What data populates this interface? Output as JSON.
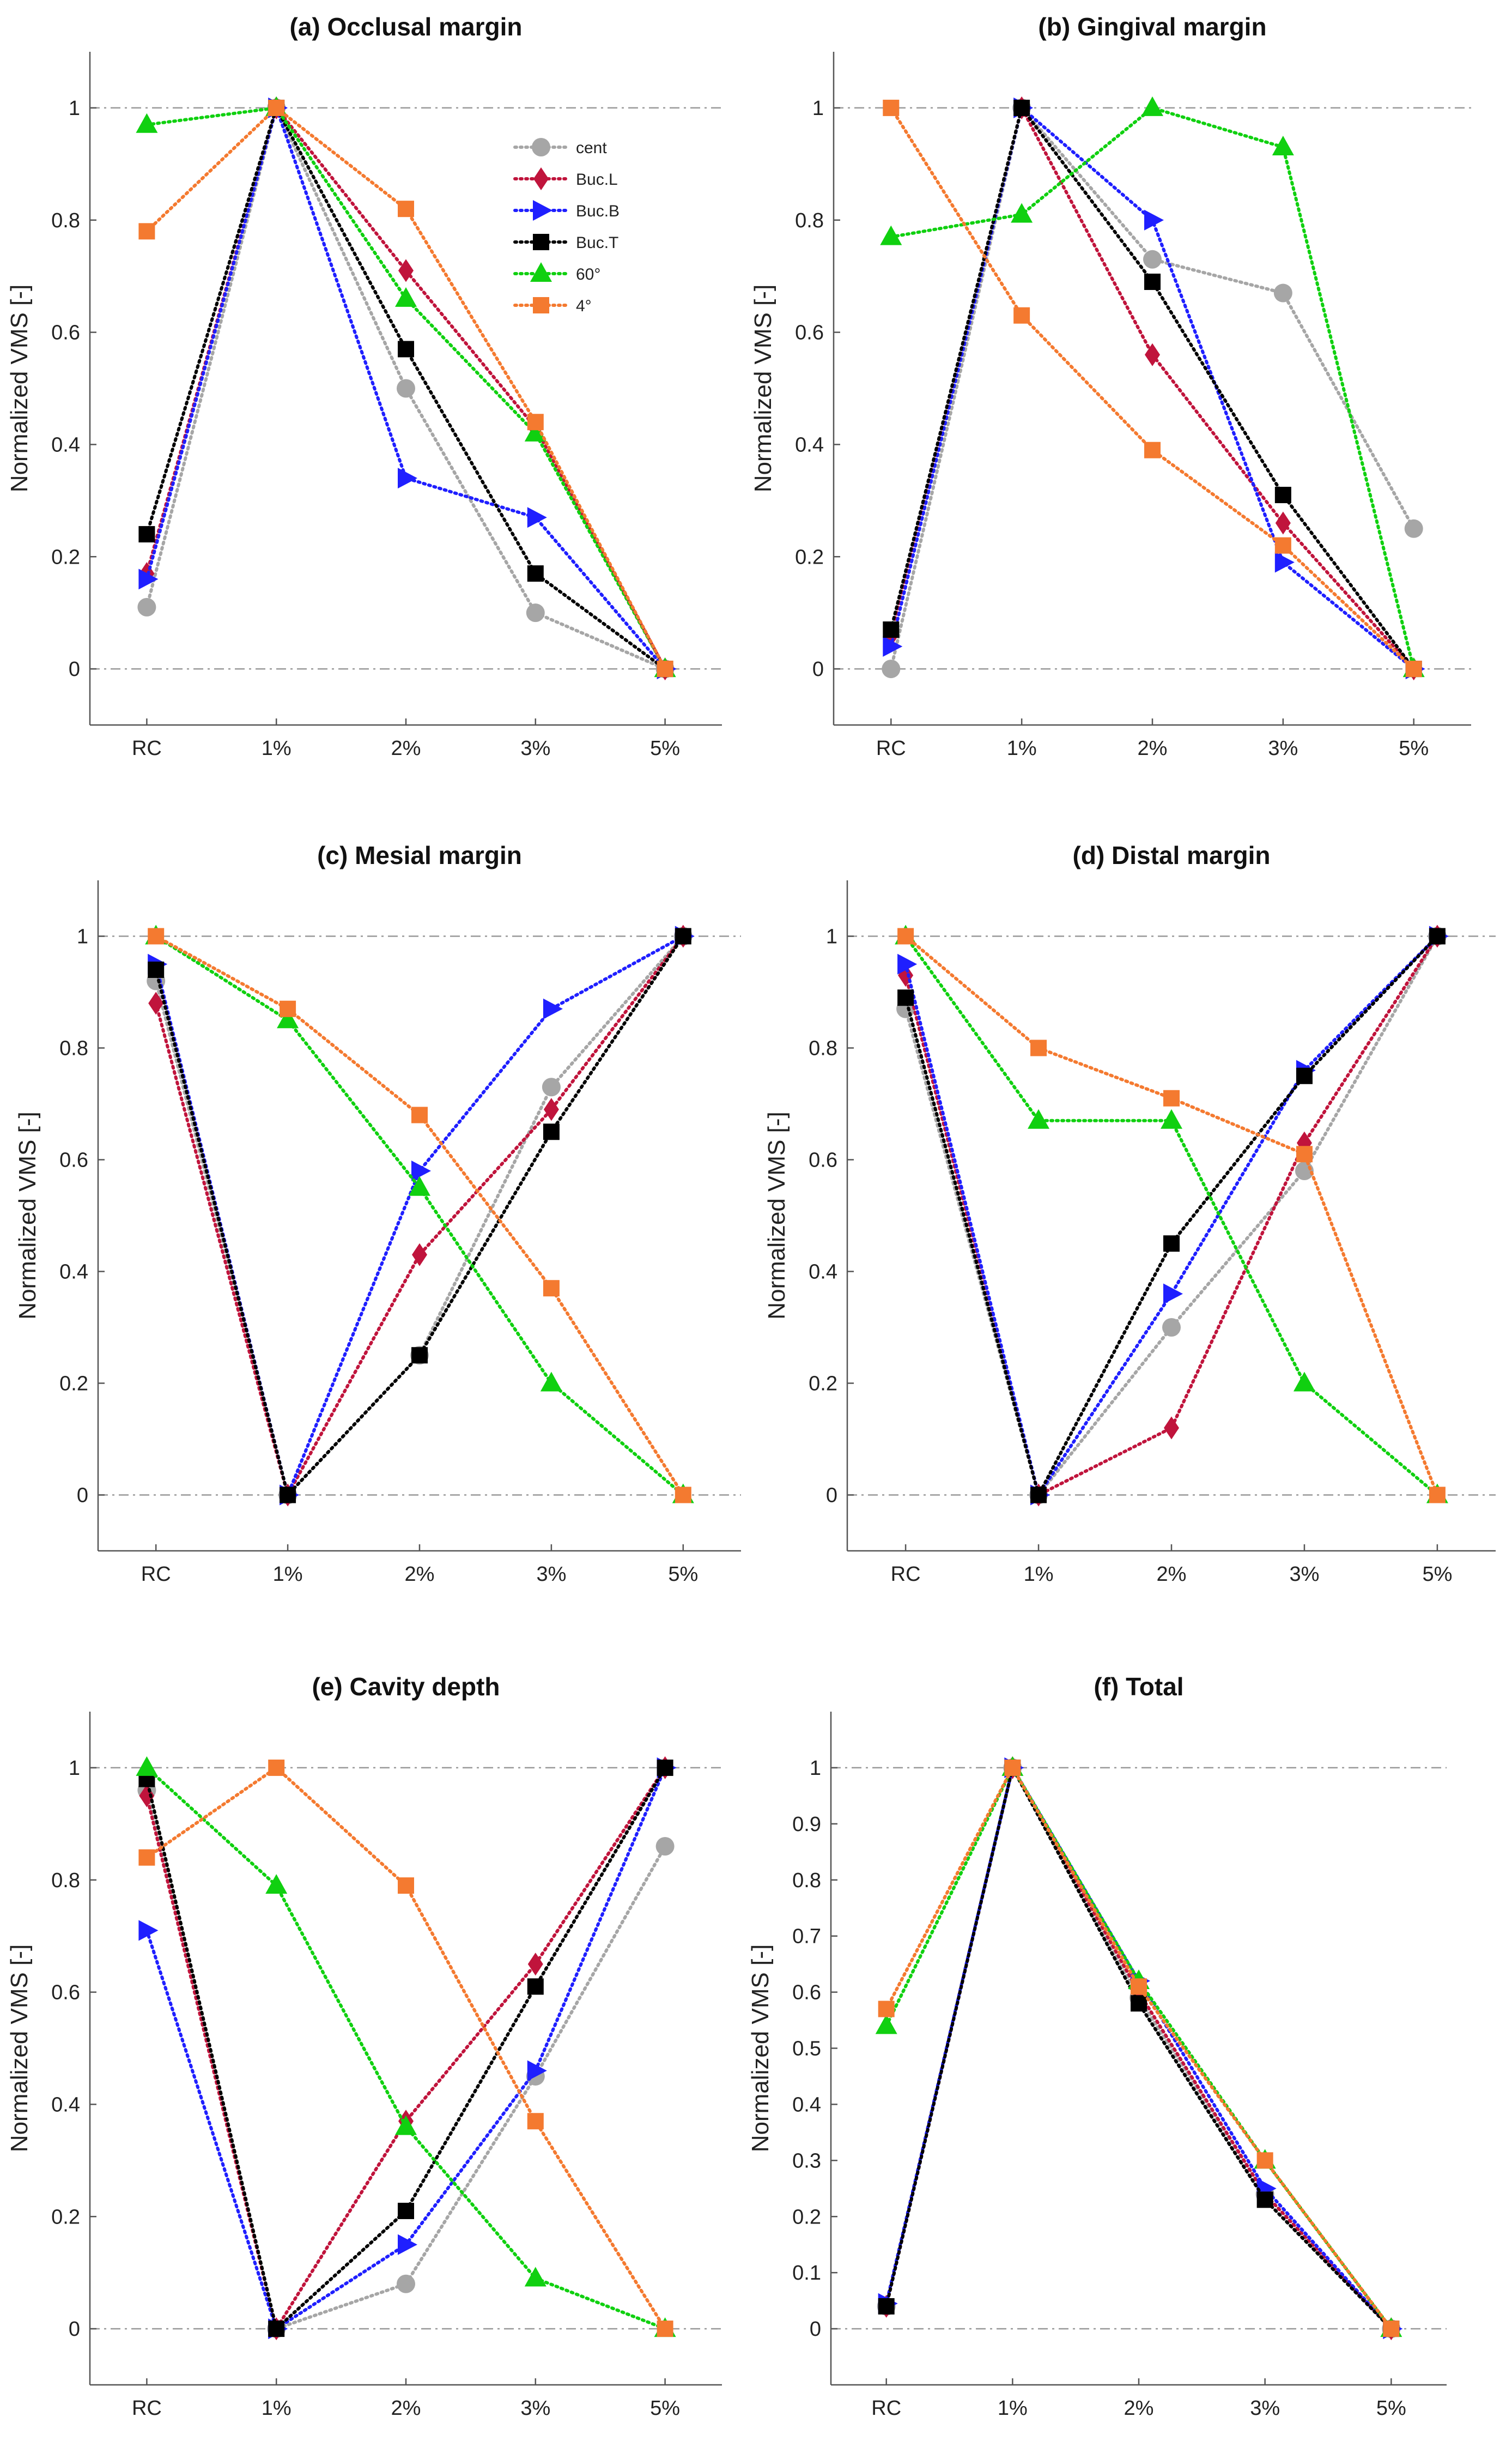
{
  "colors": {
    "cent": "#a6a6a6",
    "Buc.L": "#c0143c",
    "Buc.B": "#1f1fff",
    "Buc.T": "#000000",
    "60°": "#10d010",
    "4°": "#f47a30",
    "reference_line": "#999999",
    "axes": "#555555"
  },
  "legend": {
    "entries": [
      "cent",
      "Buc.L",
      "Buc.B",
      "Buc.T",
      "60°",
      "4°"
    ],
    "location": "top-right of panel (a)"
  },
  "chart_data": [
    {
      "type": "line",
      "title": "(a) Occlusal margin",
      "ylabel": "Normalized VMS [-]",
      "categories": [
        "RC",
        "1%",
        "2%",
        "3%",
        "5%"
      ],
      "ylim": [
        -0.1,
        1.1
      ],
      "yticks": [
        0,
        0.2,
        0.4,
        0.6,
        0.8,
        1
      ],
      "reference_lines": [
        0,
        1
      ],
      "series": [
        {
          "name": "cent",
          "marker": "circle",
          "values": [
            0.11,
            1.0,
            0.5,
            0.1,
            0.0
          ]
        },
        {
          "name": "Buc.L",
          "marker": "diamond",
          "values": [
            0.17,
            1.0,
            0.71,
            0.43,
            0.0
          ]
        },
        {
          "name": "Buc.B",
          "marker": "triangle-right",
          "values": [
            0.16,
            1.0,
            0.34,
            0.27,
            0.0
          ]
        },
        {
          "name": "Buc.T",
          "marker": "square",
          "values": [
            0.24,
            1.0,
            0.57,
            0.17,
            0.0
          ]
        },
        {
          "name": "60°",
          "marker": "triangle-up",
          "values": [
            0.97,
            1.0,
            0.66,
            0.42,
            0.0
          ]
        },
        {
          "name": "4°",
          "marker": "square",
          "values": [
            0.78,
            1.0,
            0.82,
            0.44,
            0.0
          ]
        }
      ]
    },
    {
      "type": "line",
      "title": "(b) Gingival margin",
      "ylabel": "Normalized VMS [-]",
      "categories": [
        "RC",
        "1%",
        "2%",
        "3%",
        "5%"
      ],
      "ylim": [
        -0.1,
        1.1
      ],
      "yticks": [
        0,
        0.2,
        0.4,
        0.6,
        0.8,
        1
      ],
      "reference_lines": [
        0,
        1
      ],
      "series": [
        {
          "name": "cent",
          "marker": "circle",
          "values": [
            0.0,
            1.0,
            0.73,
            0.67,
            0.25
          ]
        },
        {
          "name": "Buc.L",
          "marker": "diamond",
          "values": [
            0.06,
            1.0,
            0.56,
            0.26,
            0.0
          ]
        },
        {
          "name": "Buc.B",
          "marker": "triangle-right",
          "values": [
            0.04,
            1.0,
            0.8,
            0.19,
            0.0
          ]
        },
        {
          "name": "Buc.T",
          "marker": "square",
          "values": [
            0.07,
            1.0,
            0.69,
            0.31,
            0.0
          ]
        },
        {
          "name": "60°",
          "marker": "triangle-up",
          "values": [
            0.77,
            0.81,
            1.0,
            0.93,
            0.0
          ]
        },
        {
          "name": "4°",
          "marker": "square",
          "values": [
            1.0,
            0.63,
            0.39,
            0.22,
            0.0
          ]
        }
      ]
    },
    {
      "type": "line",
      "title": "(c) Mesial margin",
      "ylabel": "Normalized VMS [-]",
      "categories": [
        "RC",
        "1%",
        "2%",
        "3%",
        "5%"
      ],
      "ylim": [
        -0.1,
        1.1
      ],
      "yticks": [
        0,
        0.2,
        0.4,
        0.6,
        0.8,
        1
      ],
      "reference_lines": [
        0,
        1
      ],
      "series": [
        {
          "name": "cent",
          "marker": "circle",
          "values": [
            0.92,
            0.0,
            0.25,
            0.73,
            1.0
          ]
        },
        {
          "name": "Buc.L",
          "marker": "diamond",
          "values": [
            0.88,
            0.0,
            0.43,
            0.69,
            1.0
          ]
        },
        {
          "name": "Buc.B",
          "marker": "triangle-right",
          "values": [
            0.95,
            0.0,
            0.58,
            0.87,
            1.0
          ]
        },
        {
          "name": "Buc.T",
          "marker": "square",
          "values": [
            0.94,
            0.0,
            0.25,
            0.65,
            1.0
          ]
        },
        {
          "name": "60°",
          "marker": "triangle-up",
          "values": [
            1.0,
            0.85,
            0.55,
            0.2,
            0.0
          ]
        },
        {
          "name": "4°",
          "marker": "square",
          "values": [
            1.0,
            0.87,
            0.68,
            0.37,
            0.0
          ]
        }
      ]
    },
    {
      "type": "line",
      "title": "(d) Distal margin",
      "ylabel": "Normalized VMS [-]",
      "categories": [
        "RC",
        "1%",
        "2%",
        "3%",
        "5%"
      ],
      "ylim": [
        -0.1,
        1.1
      ],
      "yticks": [
        0,
        0.2,
        0.4,
        0.6,
        0.8,
        1
      ],
      "reference_lines": [
        0,
        1
      ],
      "series": [
        {
          "name": "cent",
          "marker": "circle",
          "values": [
            0.87,
            0.0,
            0.3,
            0.58,
            1.0
          ]
        },
        {
          "name": "Buc.L",
          "marker": "diamond",
          "values": [
            0.93,
            0.0,
            0.12,
            0.63,
            1.0
          ]
        },
        {
          "name": "Buc.B",
          "marker": "triangle-right",
          "values": [
            0.95,
            0.0,
            0.36,
            0.76,
            1.0
          ]
        },
        {
          "name": "Buc.T",
          "marker": "square",
          "values": [
            0.89,
            0.0,
            0.45,
            0.75,
            1.0
          ]
        },
        {
          "name": "60°",
          "marker": "triangle-up",
          "values": [
            1.0,
            0.67,
            0.67,
            0.2,
            0.0
          ]
        },
        {
          "name": "4°",
          "marker": "square",
          "values": [
            1.0,
            0.8,
            0.71,
            0.61,
            0.0
          ]
        }
      ]
    },
    {
      "type": "line",
      "title": "(e) Cavity depth",
      "ylabel": "Normalized VMS [-]",
      "categories": [
        "RC",
        "1%",
        "2%",
        "3%",
        "5%"
      ],
      "ylim": [
        -0.1,
        1.1
      ],
      "yticks": [
        0,
        0.2,
        0.4,
        0.6,
        0.8,
        1
      ],
      "reference_lines": [
        0,
        1
      ],
      "series": [
        {
          "name": "cent",
          "marker": "circle",
          "values": [
            0.96,
            0.0,
            0.08,
            0.45,
            0.86
          ]
        },
        {
          "name": "Buc.L",
          "marker": "diamond",
          "values": [
            0.95,
            0.0,
            0.37,
            0.65,
            1.0
          ]
        },
        {
          "name": "Buc.B",
          "marker": "triangle-right",
          "values": [
            0.71,
            0.0,
            0.15,
            0.46,
            1.0
          ]
        },
        {
          "name": "Buc.T",
          "marker": "square",
          "values": [
            0.98,
            0.0,
            0.21,
            0.61,
            1.0
          ]
        },
        {
          "name": "60°",
          "marker": "triangle-up",
          "values": [
            1.0,
            0.79,
            0.36,
            0.09,
            0.0
          ]
        },
        {
          "name": "4°",
          "marker": "square",
          "values": [
            0.84,
            1.0,
            0.79,
            0.37,
            0.0
          ]
        }
      ]
    },
    {
      "type": "line",
      "title": "(f) Total",
      "ylabel": "Normalized VMS [-]",
      "categories": [
        "RC",
        "1%",
        "2%",
        "3%",
        "5%"
      ],
      "ylim": [
        -0.1,
        1.1
      ],
      "yticks": [
        0,
        0.1,
        0.2,
        0.3,
        0.4,
        0.5,
        0.6,
        0.7,
        0.8,
        0.9,
        1
      ],
      "reference_lines": [
        0,
        1
      ],
      "series": [
        {
          "name": "cent",
          "marker": "circle",
          "values": [
            0.04,
            1.0,
            0.59,
            0.24,
            0.0
          ]
        },
        {
          "name": "Buc.L",
          "marker": "diamond",
          "values": [
            0.04,
            1.0,
            0.6,
            0.24,
            0.0
          ]
        },
        {
          "name": "Buc.B",
          "marker": "triangle-right",
          "values": [
            0.045,
            1.0,
            0.62,
            0.25,
            0.0
          ]
        },
        {
          "name": "Buc.T",
          "marker": "square",
          "values": [
            0.04,
            1.0,
            0.58,
            0.23,
            0.0
          ]
        },
        {
          "name": "60°",
          "marker": "triangle-up",
          "values": [
            0.54,
            1.0,
            0.62,
            0.3,
            0.0
          ]
        },
        {
          "name": "4°",
          "marker": "square",
          "values": [
            0.57,
            1.0,
            0.61,
            0.3,
            0.0
          ]
        }
      ]
    }
  ]
}
